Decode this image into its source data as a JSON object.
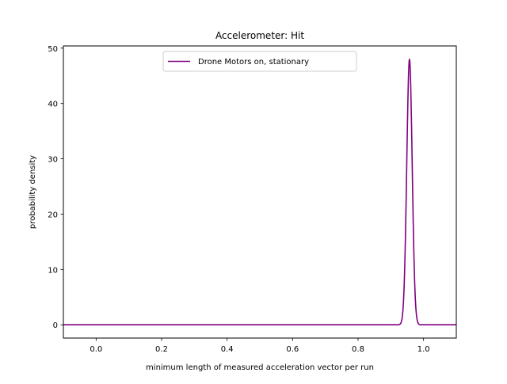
{
  "chart_data": {
    "type": "line",
    "title": "Accelerometer: Hit",
    "xlabel": "minimum length of measured acceleration vector per run",
    "ylabel": "probability density",
    "xlim": [
      -0.1,
      1.1
    ],
    "ylim": [
      -2.4,
      50.4
    ],
    "x_ticks": [
      0.0,
      0.2,
      0.4,
      0.6,
      0.8,
      1.0
    ],
    "x_tick_labels": [
      "0.0",
      "0.2",
      "0.4",
      "0.6",
      "0.8",
      "1.0"
    ],
    "y_ticks": [
      0,
      10,
      20,
      30,
      40,
      50
    ],
    "y_tick_labels": [
      "0",
      "10",
      "20",
      "30",
      "40",
      "50"
    ],
    "grid": false,
    "legend_position": "top-center",
    "series": [
      {
        "name": "Drone Motors on, stationary",
        "color": "#800080",
        "distribution": "normal",
        "mean": 0.957,
        "std": 0.0083,
        "peak_density": 48.0,
        "x_range": [
          -0.1,
          1.1
        ]
      }
    ]
  }
}
